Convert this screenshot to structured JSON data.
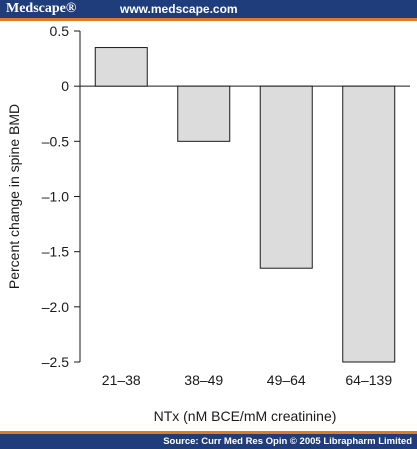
{
  "header": {
    "brand": "Medscape®",
    "url": "www.medscape.com"
  },
  "footer": {
    "source": "Source: Curr Med Res Opin © 2005 Librapharm Limited"
  },
  "colors": {
    "banner": "#1f3d7a",
    "accent": "#e37a1f",
    "bar_fill": "#dcdcdc",
    "bar_stroke": "#1a1a1a"
  },
  "chart_data": {
    "type": "bar",
    "categories": [
      "21–38",
      "38–49",
      "49–64",
      "64–139"
    ],
    "values": [
      0.35,
      -0.5,
      -1.65,
      -2.5
    ],
    "xlabel": "NTx (nM BCE/mM creatinine)",
    "ylabel": "Percent change in spine BMD",
    "ylim": [
      -2.5,
      0.5
    ],
    "yticks": [
      0.5,
      0,
      -0.5,
      -1.0,
      -1.5,
      -2.0,
      -2.5
    ],
    "ytick_labels": [
      "0.5",
      "0",
      "–0.5",
      "–1.0",
      "–1.5",
      "–2.0",
      "–2.5"
    ],
    "grid": false,
    "legend": "none"
  }
}
